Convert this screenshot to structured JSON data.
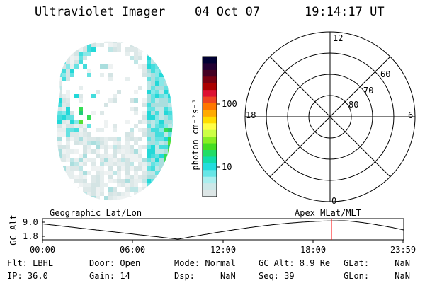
{
  "header": {
    "instrument": "Ultraviolet Imager",
    "date": "04 Oct 07",
    "time": "19:14:17 UT"
  },
  "colorbar": {
    "label": "photon cm⁻²s⁻¹",
    "ticks": [
      "100",
      "10"
    ],
    "colors": [
      "#000033",
      "#220033",
      "#440022",
      "#770011",
      "#aa0000",
      "#dd1133",
      "#ee4422",
      "#ff7700",
      "#ffaa00",
      "#ffdd00",
      "#ffff44",
      "#ccff44",
      "#88ee22",
      "#44dd22",
      "#22dd66",
      "#11ddaa",
      "#22dddd",
      "#66e6e6",
      "#aaeeee",
      "#cce8e8",
      "#dde6e6"
    ]
  },
  "polar_grid": {
    "mlt_labels": [
      "12",
      "18",
      "6",
      "0"
    ],
    "lat_labels": [
      "60",
      "70",
      "80"
    ]
  },
  "altitude_plot": {
    "left_title": "Geographic Lat/Lon",
    "right_title": "Apex MLat/MLT",
    "y_axis_label": "GC Alt",
    "y_ticks": [
      "9.0",
      "1.8"
    ],
    "x_ticks": [
      "00:00",
      "06:00",
      "12:00",
      "18:00",
      "23:59"
    ],
    "current_time_color": "#ff0000"
  },
  "status": {
    "filter": "Flt: LBHL",
    "ip": "IP: 36.0",
    "door": "Door: Open",
    "gain": "Gain: 14",
    "mode": "Mode: Normal",
    "dsp": "Dsp:     NaN",
    "gc_alt": "GC Alt: 8.9 Re",
    "seq": "Seq: 39",
    "glat": "GLat:     NaN",
    "glon": "GLon:     NaN"
  }
}
